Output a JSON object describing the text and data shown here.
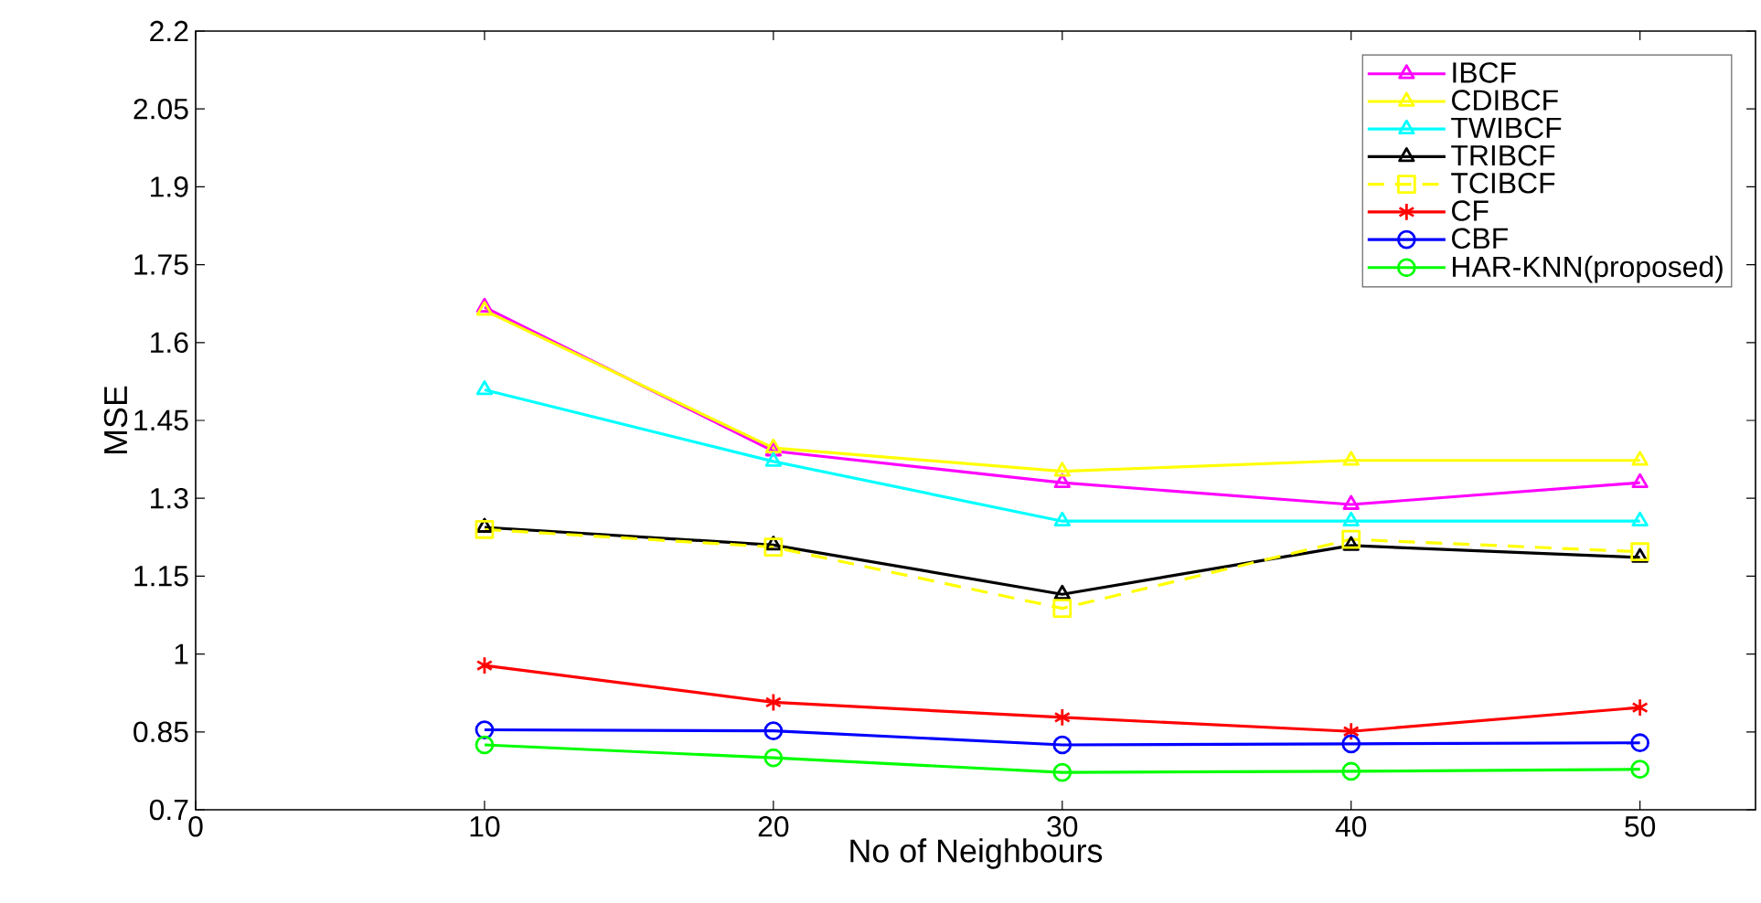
{
  "chart_data": {
    "type": "line",
    "xlabel": "No of Neighbours",
    "ylabel": "MSE",
    "x": [
      10,
      20,
      30,
      40,
      50
    ],
    "xlim": [
      0,
      54
    ],
    "xticks": [
      0,
      10,
      20,
      30,
      40,
      50
    ],
    "ylim": [
      0.7,
      2.2
    ],
    "yticks": [
      0.7,
      0.85,
      1,
      1.15,
      1.3,
      1.45,
      1.6,
      1.75,
      1.9,
      2.05,
      2.2
    ],
    "grid": false,
    "legend": "top right",
    "series": [
      {
        "name": "IBCF",
        "color": "#ff00ff",
        "marker": "triangle",
        "line_style": "solid",
        "values": [
          1.668,
          1.391,
          1.33,
          1.288,
          1.33
        ]
      },
      {
        "name": "CDIBCF",
        "color": "#ffff00",
        "marker": "triangle",
        "line_style": "solid",
        "values": [
          1.662,
          1.397,
          1.352,
          1.373,
          1.373
        ]
      },
      {
        "name": "TWIBCF",
        "color": "#00ffff",
        "marker": "triangle",
        "line_style": "solid",
        "values": [
          1.509,
          1.371,
          1.256,
          1.256,
          1.256
        ]
      },
      {
        "name": "TRIBCF",
        "color": "#000000",
        "marker": "triangle",
        "line_style": "solid",
        "values": [
          1.244,
          1.21,
          1.115,
          1.209,
          1.186
        ]
      },
      {
        "name": "TCIBCF",
        "color": "#ffff00",
        "marker": "square",
        "line_style": "dashed",
        "values": [
          1.24,
          1.206,
          1.088,
          1.221,
          1.197
        ]
      },
      {
        "name": "CF",
        "color": "#ff0000",
        "marker": "cross",
        "line_style": "solid",
        "values": [
          0.978,
          0.907,
          0.878,
          0.851,
          0.897
        ]
      },
      {
        "name": "CBF",
        "color": "#0000ff",
        "marker": "circle",
        "line_style": "solid",
        "values": [
          0.854,
          0.852,
          0.825,
          0.827,
          0.829
        ]
      },
      {
        "name": "HAR-KNN(proposed)",
        "color": "#00ff00",
        "marker": "circle",
        "line_style": "solid",
        "values": [
          0.825,
          0.8,
          0.772,
          0.774,
          0.778
        ]
      }
    ]
  }
}
